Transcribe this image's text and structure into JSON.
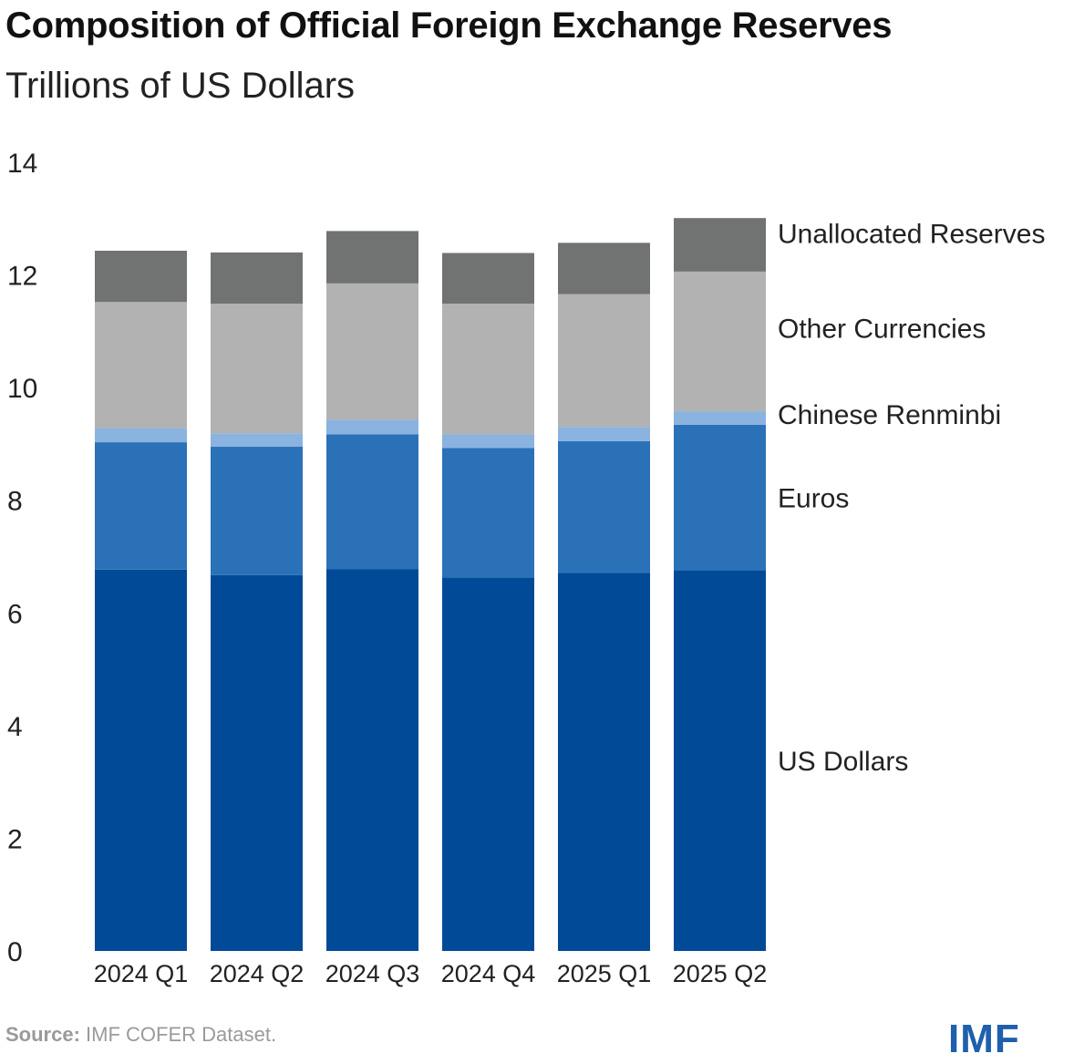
{
  "title": "Composition of Official Foreign Exchange Reserves",
  "subtitle": "Trillions of US Dollars",
  "source_label": "Source:",
  "source_text": " IMF COFER Dataset.",
  "logo_text": "IMF",
  "chart_data": {
    "type": "bar",
    "stacked": true,
    "title": "Composition of Official Foreign Exchange Reserves",
    "subtitle": "Trillions of US Dollars",
    "categories": [
      "2024 Q1",
      "2024 Q2",
      "2024 Q3",
      "2024 Q4",
      "2025 Q1",
      "2025 Q2"
    ],
    "ylim": [
      0,
      14
    ],
    "yticks": [
      0,
      2,
      4,
      6,
      8,
      10,
      12,
      14
    ],
    "legend_placement": "right",
    "series": [
      {
        "name": "US Dollars",
        "color": "#004a98",
        "values": [
          6.77,
          6.67,
          6.78,
          6.63,
          6.71,
          6.76
        ]
      },
      {
        "name": "Euros",
        "color": "#2a71b8",
        "values": [
          2.26,
          2.28,
          2.39,
          2.3,
          2.34,
          2.58
        ]
      },
      {
        "name": "Chinese Renminbi",
        "color": "#8ab3df",
        "values": [
          0.25,
          0.24,
          0.26,
          0.24,
          0.25,
          0.24
        ]
      },
      {
        "name": "Other Currencies",
        "color": "#b1b2b1",
        "values": [
          2.24,
          2.3,
          2.42,
          2.32,
          2.36,
          2.48
        ]
      },
      {
        "name": "Unallocated Reserves",
        "color": "#717372",
        "values": [
          0.91,
          0.91,
          0.93,
          0.9,
          0.91,
          0.95
        ]
      }
    ]
  }
}
